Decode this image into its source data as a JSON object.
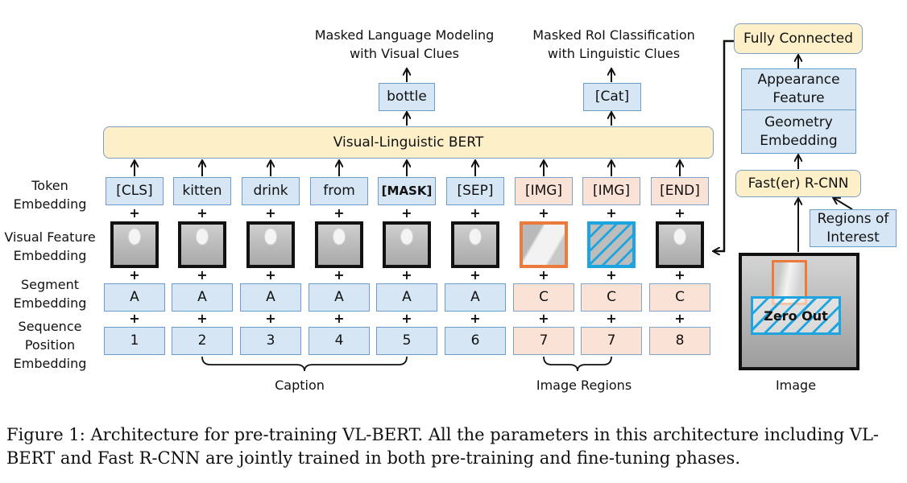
{
  "tasks": {
    "mlm": "Masked Language Modeling\nwith Visual Clues",
    "mrc": "Masked RoI Classification\nwith Linguistic Clues",
    "mlm_output": "bottle",
    "mrc_output": "[Cat]"
  },
  "bert_label": "Visual-Linguistic BERT",
  "row_labels": {
    "token": "Token\nEmbedding",
    "visual": "Visual Feature\nEmbedding",
    "segment": "Segment\nEmbedding",
    "position": "Sequence\nPosition\nEmbedding"
  },
  "columns": [
    {
      "token": "[CLS]",
      "segment": "A",
      "position": "1",
      "group": "text",
      "visual": "full-image"
    },
    {
      "token": "kitten",
      "segment": "A",
      "position": "2",
      "group": "text",
      "visual": "full-image"
    },
    {
      "token": "drink",
      "segment": "A",
      "position": "3",
      "group": "text",
      "visual": "full-image"
    },
    {
      "token": "from",
      "segment": "A",
      "position": "4",
      "group": "text",
      "visual": "full-image"
    },
    {
      "token": "[MASK]",
      "segment": "A",
      "position": "5",
      "group": "text",
      "visual": "full-image"
    },
    {
      "token": "[SEP]",
      "segment": "A",
      "position": "6",
      "group": "text",
      "visual": "full-image"
    },
    {
      "token": "[IMG]",
      "segment": "C",
      "position": "7",
      "group": "image",
      "visual": "roi-orange"
    },
    {
      "token": "[IMG]",
      "segment": "C",
      "position": "7",
      "group": "image",
      "visual": "roi-masked"
    },
    {
      "token": "[END]",
      "segment": "C",
      "position": "8",
      "group": "image",
      "visual": "full-image"
    }
  ],
  "plus_sign": "+",
  "group_labels": {
    "caption": "Caption",
    "image_regions": "Image Regions",
    "image": "Image"
  },
  "pipeline": {
    "fully_connected": "Fully Connected",
    "appearance": "Appearance\nFeature",
    "geometry": "Geometry\nEmbedding",
    "rcnn": "Fast(er) R-CNN",
    "rois": "Regions of\nInterest",
    "zero_out": "Zero Out"
  },
  "figure_caption": "Figure 1: Architecture for pre-training VL-BERT. All the parameters in this architecture including VL-BERT and Fast R-CNN are jointly trained in both pre-training and fine-tuning phases.",
  "colors": {
    "text_box": "#d7e6f4",
    "image_box": "#fbe2d6",
    "module": "#fdf0c9",
    "roi": "#ec7a3d",
    "masked_roi": "#1ea5e0"
  }
}
